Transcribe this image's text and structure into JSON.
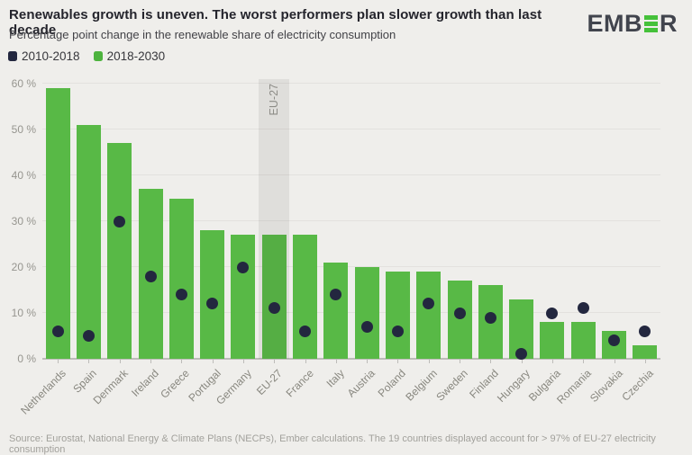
{
  "header": {
    "title": "Renewables growth is uneven. The worst performers plan slower growth than last decade",
    "subtitle": "Percentage point change in the renewable share of electricity consumption",
    "logo_prefix": "EMB",
    "logo_suffix": "R",
    "logo_text_color": "#41444d",
    "logo_green": "#45c13a"
  },
  "legend": [
    {
      "label": "2010-2018",
      "color": "#23273f"
    },
    {
      "label": "2018-2030",
      "color": "#4db33e"
    }
  ],
  "footer": {
    "source": "Source: Eurostat, National Energy & Climate Plans (NECPs), Ember calculations. The 19 countries displayed account for > 97% of EU-27 electricity consumption"
  },
  "colors": {
    "background": "#efeeeb",
    "bar_green": "#58b946",
    "dot_navy": "#23273f",
    "grid": "#e3e1de",
    "axis": "#bdbcb9",
    "highlight_band": "rgba(60,60,55,0.085)"
  },
  "chart_data": {
    "type": "bar",
    "title": "Renewables growth is uneven. The worst performers plan slower growth than last decade",
    "subtitle": "Percentage point change in the renewable share of electricity consumption",
    "categories": [
      "Netherlands",
      "Spain",
      "Denmark",
      "Ireland",
      "Greece",
      "Portugal",
      "Germany",
      "EU-27",
      "France",
      "Italy",
      "Austria",
      "Poland",
      "Belgium",
      "Sweden",
      "Finland",
      "Hungary",
      "Bulgaria",
      "Romania",
      "Slovakia",
      "Czechia"
    ],
    "series": [
      {
        "name": "2010-2018",
        "type": "scatter",
        "color": "#23273f",
        "values": [
          6,
          5,
          30,
          18,
          14,
          12,
          20,
          11,
          6,
          14,
          7,
          6,
          12,
          10,
          9,
          1,
          10,
          11,
          4,
          6
        ]
      },
      {
        "name": "2018-2030",
        "type": "bar",
        "color": "#58b946",
        "values": [
          59,
          51,
          47,
          37,
          35,
          28,
          27,
          27,
          27,
          21,
          20,
          19,
          19,
          17,
          16,
          13,
          8,
          8,
          6,
          3
        ]
      }
    ],
    "highlight_category": "EU-27",
    "ylim": [
      0,
      60
    ],
    "yticks": [
      0,
      10,
      20,
      30,
      40,
      50,
      60
    ],
    "ytick_suffix": " %",
    "grid": true,
    "legend_position": "top-left",
    "unit": "percentage points"
  }
}
